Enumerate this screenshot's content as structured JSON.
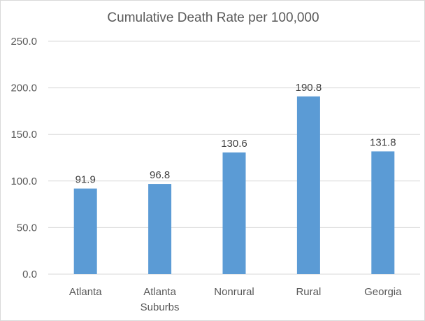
{
  "chart_data": {
    "type": "bar",
    "title": "Cumulative Death Rate per 100,000",
    "categories": [
      [
        "Atlanta"
      ],
      [
        "Atlanta",
        "Suburbs"
      ],
      [
        "Nonrural"
      ],
      [
        "Rural"
      ],
      [
        "Georgia"
      ]
    ],
    "values": [
      91.9,
      96.8,
      130.6,
      190.8,
      131.8
    ],
    "value_labels": [
      "91.9",
      "96.8",
      "130.6",
      "190.8",
      "131.8"
    ],
    "ylim": [
      0,
      250
    ],
    "yticks": [
      0,
      50,
      100,
      150,
      200,
      250
    ],
    "ytick_labels": [
      "0.0",
      "50.0",
      "100.0",
      "150.0",
      "200.0",
      "250.0"
    ],
    "grid": true,
    "legend": "none",
    "bar_color": "#5b9bd5",
    "xlabel": "",
    "ylabel": ""
  }
}
